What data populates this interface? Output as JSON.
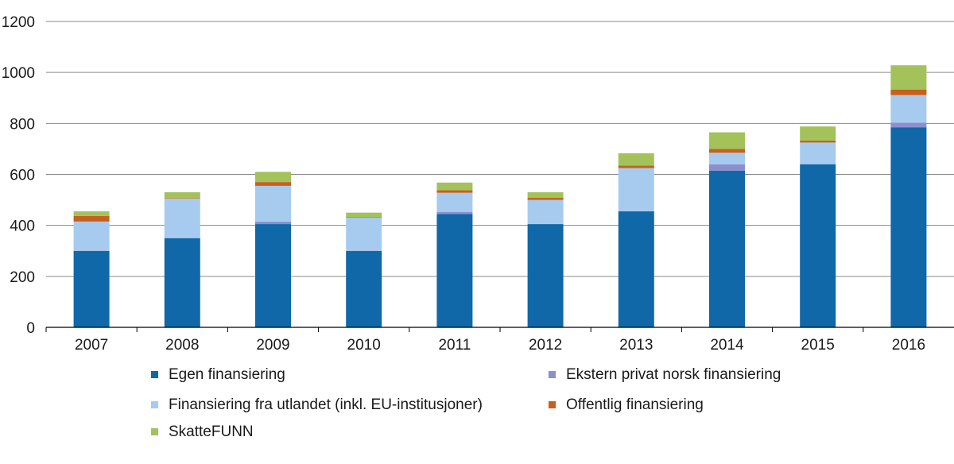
{
  "chart_data": {
    "type": "bar",
    "stacked": true,
    "title": "",
    "xlabel": "",
    "ylabel": "",
    "ylim": [
      0,
      1200
    ],
    "yticks": [
      0,
      200,
      400,
      600,
      800,
      1000,
      1200
    ],
    "grid": true,
    "legend_position": "bottom",
    "categories": [
      "2007",
      "2008",
      "2009",
      "2010",
      "2011",
      "2012",
      "2013",
      "2014",
      "2015",
      "2016"
    ],
    "series": [
      {
        "name": "Egen finansiering",
        "color": "#1068a8",
        "values": [
          300,
          350,
          405,
          300,
          445,
          405,
          455,
          615,
          640,
          785
        ]
      },
      {
        "name": "Ekstern privat norsk finansiering",
        "color": "#8b8fd0",
        "values": [
          0,
          0,
          10,
          0,
          8,
          0,
          0,
          25,
          0,
          18
        ]
      },
      {
        "name": "Finansiering fra utlandet (inkl. EU-institusjoner)",
        "color": "#a6cbee",
        "values": [
          115,
          155,
          140,
          130,
          75,
          95,
          170,
          45,
          85,
          108
        ]
      },
      {
        "name": "Offentlig finansiering",
        "color": "#c7601e",
        "values": [
          22,
          2,
          15,
          2,
          10,
          8,
          10,
          15,
          8,
          22
        ]
      },
      {
        "name": "SkatteFUNN",
        "color": "#a3c25a",
        "values": [
          18,
          23,
          40,
          18,
          30,
          22,
          48,
          65,
          55,
          95
        ]
      }
    ]
  }
}
